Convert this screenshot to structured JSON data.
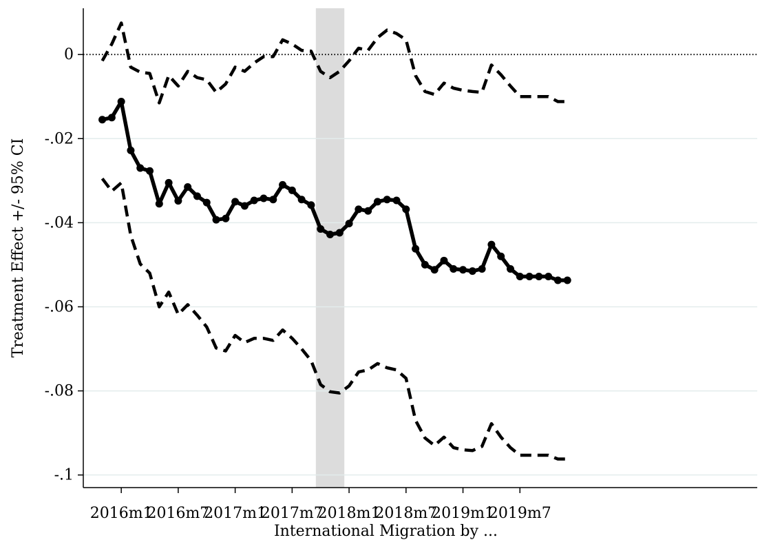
{
  "chart_data": {
    "type": "line",
    "ylabel": "Treatment Effect +/- 95% CI",
    "xlabel": "International Migration by ...",
    "ylim": [
      -0.103,
      0.011
    ],
    "xlim": [
      -4,
      67
    ],
    "x_ticks": [
      {
        "x": 0,
        "label": "2016m1"
      },
      {
        "x": 6,
        "label": "2016m7"
      },
      {
        "x": 12,
        "label": "2017m1"
      },
      {
        "x": 18,
        "label": "2017m7"
      },
      {
        "x": 24,
        "label": "2018m1"
      },
      {
        "x": 30,
        "label": "2018m7"
      },
      {
        "x": 36,
        "label": "2019m1"
      },
      {
        "x": 42,
        "label": "2019m7"
      }
    ],
    "y_ticks": [
      {
        "y": 0,
        "label": "0"
      },
      {
        "y": -0.02,
        "label": "-.02"
      },
      {
        "y": -0.04,
        "label": "-.04"
      },
      {
        "y": -0.06,
        "label": "-.06"
      },
      {
        "y": -0.08,
        "label": "-.08"
      },
      {
        "y": -0.1,
        "label": "-.1"
      }
    ],
    "grid": true,
    "reference_line_y": 0,
    "shaded_band_x": [
      20.5,
      23.5
    ],
    "x": [
      -2,
      -1,
      0,
      1,
      2,
      3,
      4,
      5,
      6,
      7,
      8,
      9,
      10,
      11,
      12,
      13,
      14,
      15,
      16,
      17,
      18,
      19,
      20,
      21,
      22,
      23,
      24,
      25,
      26,
      27,
      28,
      29,
      30,
      31,
      32,
      33,
      34,
      35,
      36,
      37,
      38,
      39,
      40,
      41,
      42,
      43,
      44,
      45,
      46,
      47
    ],
    "series": [
      {
        "role": "estimate",
        "style": "solid-markers",
        "values": [
          -0.0155,
          -0.015,
          -0.0112,
          -0.0228,
          -0.027,
          -0.0277,
          -0.0355,
          -0.0305,
          -0.0348,
          -0.0315,
          -0.0337,
          -0.0352,
          -0.0393,
          -0.039,
          -0.035,
          -0.036,
          -0.0347,
          -0.0342,
          -0.0345,
          -0.031,
          -0.0323,
          -0.0345,
          -0.0358,
          -0.0415,
          -0.0428,
          -0.0424,
          -0.0402,
          -0.0368,
          -0.0372,
          -0.035,
          -0.0345,
          -0.0347,
          -0.0368,
          -0.0462,
          -0.05,
          -0.0512,
          -0.049,
          -0.051,
          -0.0512,
          -0.0515,
          -0.051,
          -0.0452,
          -0.048,
          -0.051,
          -0.0528,
          -0.0528,
          -0.0528,
          -0.0528,
          -0.0537,
          -0.0537
        ]
      },
      {
        "role": "ci-upper",
        "style": "dashed",
        "values": [
          -0.0015,
          0.0025,
          0.0075,
          -0.003,
          -0.0042,
          -0.0045,
          -0.0115,
          -0.005,
          -0.0075,
          -0.004,
          -0.0055,
          -0.006,
          -0.009,
          -0.007,
          -0.003,
          -0.004,
          -0.002,
          -0.0005,
          -0.0005,
          0.0035,
          0.0025,
          0.001,
          0.0008,
          -0.004,
          -0.0055,
          -0.004,
          -0.0015,
          0.0015,
          0.001,
          0.004,
          0.0058,
          0.005,
          0.0035,
          -0.005,
          -0.0088,
          -0.0095,
          -0.0068,
          -0.008,
          -0.0085,
          -0.0088,
          -0.009,
          -0.0025,
          -0.0048,
          -0.0075,
          -0.01,
          -0.01,
          -0.01,
          -0.01,
          -0.0112,
          -0.0112
        ]
      },
      {
        "role": "ci-lower",
        "style": "dashed",
        "values": [
          -0.0295,
          -0.0325,
          -0.0305,
          -0.043,
          -0.0498,
          -0.052,
          -0.06,
          -0.0565,
          -0.0618,
          -0.0595,
          -0.062,
          -0.0648,
          -0.0698,
          -0.0705,
          -0.0668,
          -0.0685,
          -0.0675,
          -0.0675,
          -0.068,
          -0.0655,
          -0.0675,
          -0.07,
          -0.0728,
          -0.0785,
          -0.0802,
          -0.0805,
          -0.0788,
          -0.0755,
          -0.075,
          -0.0735,
          -0.0745,
          -0.075,
          -0.077,
          -0.087,
          -0.0912,
          -0.093,
          -0.091,
          -0.0935,
          -0.094,
          -0.0942,
          -0.0932,
          -0.0878,
          -0.091,
          -0.0935,
          -0.0953,
          -0.0953,
          -0.0953,
          -0.0953,
          -0.0962,
          -0.0962
        ]
      }
    ]
  }
}
